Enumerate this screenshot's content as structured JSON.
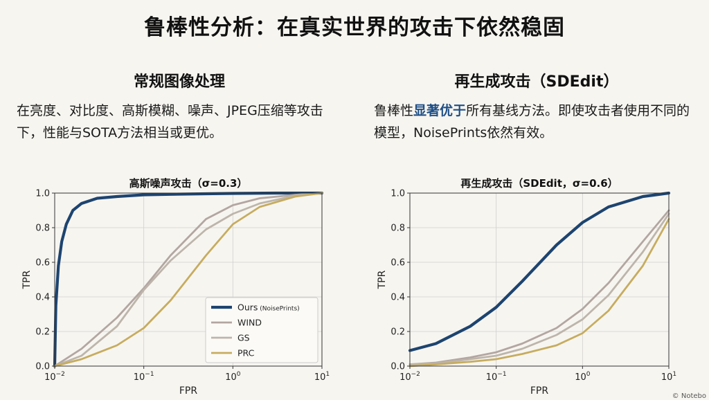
{
  "page_title": "鲁棒性分析：在真实世界的攻击下依然稳固",
  "left_panel": {
    "heading": "常规图像处理",
    "body": "在亮度、对比度、高斯模糊、噪声、JPEG压缩等攻击下，性能与SOTA方法相当或更优。"
  },
  "right_panel": {
    "heading": "再生成攻击（SDEdit）",
    "body_before": "鲁棒性",
    "body_highlight": "显著优于",
    "body_after": "所有基线方法。即使攻击者使用不同的模型，NoisePrints依然有效。"
  },
  "colors": {
    "ours": "#1d4470",
    "wind": "#b3a6a1",
    "gs": "#bdb5ab",
    "prc": "#c6ac5e",
    "background": "#f7f5f0",
    "highlight": "#1e4f86"
  },
  "chart_data": [
    {
      "type": "line",
      "title": "高斯噪声攻击（σ=0.3）",
      "xlabel": "FPR",
      "ylabel": "TPR",
      "xscale": "log",
      "xlim": [
        0.01,
        10
      ],
      "ylim": [
        0,
        1
      ],
      "x_ticks": [
        {
          "value": 0.01,
          "base": "10",
          "exp": "−2"
        },
        {
          "value": 0.1,
          "base": "10",
          "exp": "−1"
        },
        {
          "value": 1,
          "base": "10",
          "exp": "0"
        },
        {
          "value": 10,
          "base": "10",
          "exp": "1"
        }
      ],
      "y_ticks": [
        "0.0",
        "0.2",
        "0.4",
        "0.6",
        "0.8",
        "1.0"
      ],
      "grid": true,
      "legend": {
        "position": "bottom-right",
        "entries": [
          {
            "name": "Ours",
            "suffix": "(NoisePrints)",
            "color_key": "ours"
          },
          {
            "name": "WIND",
            "suffix": "",
            "color_key": "wind"
          },
          {
            "name": "GS",
            "suffix": "",
            "color_key": "gs"
          },
          {
            "name": "PRC",
            "suffix": "",
            "color_key": "prc"
          }
        ]
      },
      "series": [
        {
          "name": "Ours",
          "color_key": "ours",
          "width": 4.2,
          "x": [
            0.01,
            0.0103,
            0.011,
            0.012,
            0.0135,
            0.016,
            0.02,
            0.03,
            0.05,
            0.1,
            0.2,
            0.5,
            1,
            3,
            10
          ],
          "y": [
            0.0,
            0.35,
            0.58,
            0.72,
            0.82,
            0.9,
            0.94,
            0.97,
            0.98,
            0.99,
            0.993,
            0.996,
            0.998,
            1.0,
            1.0
          ]
        },
        {
          "name": "WIND",
          "color_key": "wind",
          "width": 2.8,
          "x": [
            0.01,
            0.02,
            0.05,
            0.1,
            0.2,
            0.5,
            1,
            2,
            5,
            10
          ],
          "y": [
            0.0,
            0.1,
            0.28,
            0.45,
            0.64,
            0.85,
            0.93,
            0.97,
            0.99,
            1.0
          ]
        },
        {
          "name": "GS",
          "color_key": "gs",
          "width": 2.8,
          "x": [
            0.01,
            0.02,
            0.05,
            0.1,
            0.2,
            0.5,
            1,
            2,
            5,
            10
          ],
          "y": [
            0.0,
            0.06,
            0.23,
            0.44,
            0.61,
            0.79,
            0.88,
            0.94,
            0.985,
            1.0
          ]
        },
        {
          "name": "PRC",
          "color_key": "prc",
          "width": 2.8,
          "x": [
            0.01,
            0.02,
            0.05,
            0.1,
            0.2,
            0.5,
            1,
            2,
            5,
            10
          ],
          "y": [
            0.0,
            0.04,
            0.12,
            0.22,
            0.38,
            0.64,
            0.82,
            0.92,
            0.98,
            1.0
          ]
        }
      ]
    },
    {
      "type": "line",
      "title": "再生成攻击（SDEdit，σ=0.6）",
      "xlabel": "FPR",
      "ylabel": "TPR",
      "xscale": "log",
      "xlim": [
        0.01,
        10
      ],
      "ylim": [
        0,
        1
      ],
      "x_ticks": [
        {
          "value": 0.01,
          "base": "10",
          "exp": "−2"
        },
        {
          "value": 0.1,
          "base": "10",
          "exp": "−1"
        },
        {
          "value": 1,
          "base": "10",
          "exp": "0"
        },
        {
          "value": 10,
          "base": "10",
          "exp": "1"
        }
      ],
      "y_ticks": [
        "0.0",
        "0.2",
        "0.4",
        "0.6",
        "0.8",
        "1.0"
      ],
      "grid": true,
      "series": [
        {
          "name": "Ours",
          "color_key": "ours",
          "width": 4.2,
          "x": [
            0.01,
            0.02,
            0.05,
            0.1,
            0.2,
            0.5,
            1,
            2,
            5,
            10
          ],
          "y": [
            0.09,
            0.13,
            0.23,
            0.34,
            0.49,
            0.7,
            0.83,
            0.92,
            0.98,
            1.0
          ]
        },
        {
          "name": "WIND",
          "color_key": "wind",
          "width": 2.8,
          "x": [
            0.01,
            0.02,
            0.05,
            0.1,
            0.2,
            0.5,
            1,
            2,
            5,
            10
          ],
          "y": [
            0.01,
            0.02,
            0.05,
            0.08,
            0.13,
            0.22,
            0.33,
            0.48,
            0.72,
            0.9
          ]
        },
        {
          "name": "GS",
          "color_key": "gs",
          "width": 2.8,
          "x": [
            0.01,
            0.02,
            0.05,
            0.1,
            0.2,
            0.5,
            1,
            2,
            5,
            10
          ],
          "y": [
            0.01,
            0.015,
            0.04,
            0.06,
            0.1,
            0.18,
            0.27,
            0.41,
            0.66,
            0.88
          ]
        },
        {
          "name": "PRC",
          "color_key": "prc",
          "width": 2.8,
          "x": [
            0.01,
            0.02,
            0.05,
            0.1,
            0.2,
            0.5,
            1,
            2,
            5,
            10
          ],
          "y": [
            0.0,
            0.01,
            0.025,
            0.04,
            0.07,
            0.12,
            0.19,
            0.32,
            0.58,
            0.85
          ]
        }
      ]
    }
  ],
  "watermark": "© Notebo"
}
